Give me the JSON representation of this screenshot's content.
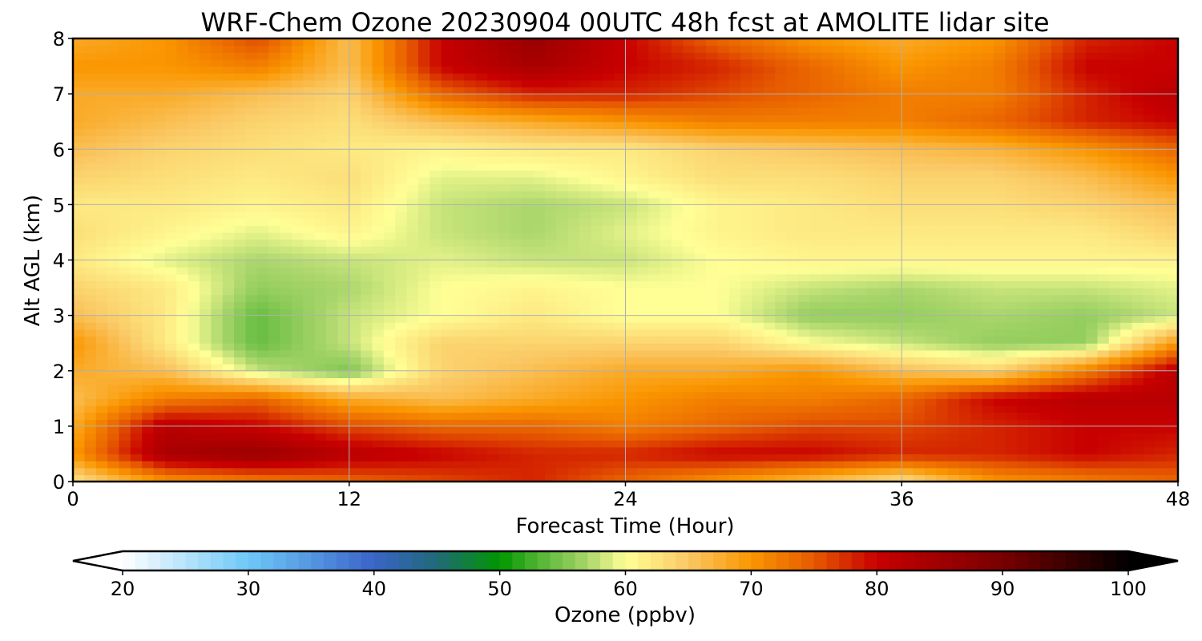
{
  "chart_data": {
    "type": "heatmap",
    "title": "WRF-Chem Ozone  20230904 00UTC 48h fcst at AMOLITE lidar site",
    "xlabel": "Forecast Time (Hour)",
    "ylabel": "Alt AGL (km)",
    "xlim": [
      0,
      48
    ],
    "ylim": [
      0,
      8
    ],
    "x_ticks": [
      0,
      12,
      24,
      36,
      48
    ],
    "y_ticks": [
      0,
      1,
      2,
      3,
      4,
      5,
      6,
      7,
      8
    ],
    "grid": true,
    "x": [
      0,
      4,
      8,
      12,
      16,
      20,
      24,
      28,
      32,
      36,
      40,
      44,
      48
    ],
    "y": [
      0,
      0.5,
      1,
      1.5,
      2,
      2.5,
      3,
      3.5,
      4,
      4.5,
      5,
      5.5,
      6,
      6.5,
      7,
      7.5,
      8
    ],
    "z": [
      [
        62,
        70,
        72,
        74,
        76,
        78,
        74,
        70,
        66,
        62,
        70,
        72,
        74
      ],
      [
        70,
        84,
        86,
        82,
        80,
        78,
        78,
        80,
        80,
        78,
        78,
        80,
        78
      ],
      [
        68,
        82,
        80,
        76,
        74,
        74,
        72,
        74,
        76,
        76,
        78,
        80,
        80
      ],
      [
        66,
        72,
        74,
        68,
        66,
        68,
        70,
        72,
        72,
        74,
        80,
        82,
        82
      ],
      [
        68,
        66,
        58,
        55,
        64,
        66,
        68,
        68,
        70,
        66,
        64,
        72,
        82
      ],
      [
        70,
        62,
        54,
        58,
        64,
        64,
        64,
        64,
        60,
        58,
        56,
        56,
        70
      ],
      [
        66,
        62,
        54,
        58,
        60,
        62,
        60,
        60,
        56,
        56,
        57,
        56,
        58
      ],
      [
        64,
        62,
        56,
        57,
        60,
        61,
        60,
        60,
        58,
        57,
        58,
        58,
        59
      ],
      [
        62,
        59,
        57,
        58,
        59,
        58,
        58,
        60,
        61,
        61,
        61,
        61,
        61
      ],
      [
        63,
        61,
        59,
        61,
        58,
        57,
        59,
        61,
        62,
        62,
        62,
        62,
        64
      ],
      [
        62,
        62,
        61,
        62,
        58,
        57,
        58,
        61,
        62,
        63,
        63,
        64,
        66
      ],
      [
        64,
        63,
        62,
        63,
        59,
        59,
        61,
        63,
        63,
        64,
        64,
        66,
        70
      ],
      [
        66,
        64,
        63,
        62,
        61,
        62,
        62,
        64,
        65,
        66,
        67,
        70,
        74
      ],
      [
        68,
        66,
        64,
        63,
        66,
        68,
        70,
        72,
        72,
        72,
        74,
        78,
        80
      ],
      [
        68,
        68,
        66,
        64,
        74,
        78,
        78,
        76,
        74,
        72,
        72,
        78,
        82
      ],
      [
        70,
        70,
        72,
        66,
        80,
        84,
        80,
        78,
        74,
        70,
        72,
        80,
        80
      ],
      [
        68,
        70,
        76,
        66,
        80,
        86,
        80,
        74,
        70,
        68,
        70,
        78,
        80
      ]
    ],
    "colorbar": {
      "label": "Ozone  (ppbv)",
      "min": 20,
      "max": 100,
      "ticks": [
        20,
        30,
        40,
        50,
        60,
        70,
        80,
        90,
        100
      ],
      "extend": "both",
      "color_stops": [
        {
          "v": 20,
          "c": "#ffffff"
        },
        {
          "v": 30,
          "c": "#6ec8f8"
        },
        {
          "v": 40,
          "c": "#3a64c8"
        },
        {
          "v": 45,
          "c": "#206a78"
        },
        {
          "v": 50,
          "c": "#009600"
        },
        {
          "v": 53,
          "c": "#50b432"
        },
        {
          "v": 57,
          "c": "#aad66c"
        },
        {
          "v": 60,
          "c": "#ffff96"
        },
        {
          "v": 65,
          "c": "#fac864"
        },
        {
          "v": 70,
          "c": "#fa9600"
        },
        {
          "v": 75,
          "c": "#e65a00"
        },
        {
          "v": 80,
          "c": "#c80000"
        },
        {
          "v": 85,
          "c": "#a00000"
        },
        {
          "v": 90,
          "c": "#780000"
        },
        {
          "v": 95,
          "c": "#3c0000"
        },
        {
          "v": 100,
          "c": "#000000"
        }
      ]
    }
  }
}
